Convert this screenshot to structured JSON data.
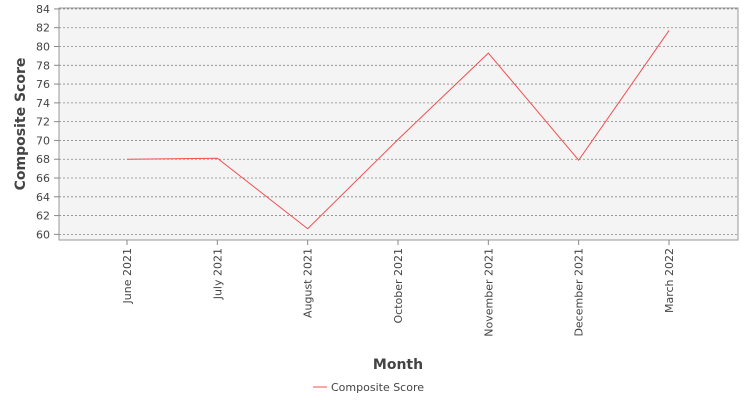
{
  "chart_data": {
    "type": "line",
    "x_label": "Month",
    "y_label": "Composite Score",
    "categories": [
      "June 2021",
      "July 2021",
      "August 2021",
      "October 2021",
      "November 2021",
      "December 2021",
      "March 2022"
    ],
    "series": [
      {
        "name": "Composite Score",
        "color": "#f05050",
        "values": [
          68.0,
          68.1,
          60.6,
          70.1,
          79.3,
          67.9,
          81.7
        ]
      }
    ],
    "ylim": [
      59.4,
      84.1
    ],
    "yticks": [
      60,
      62,
      64,
      66,
      68,
      70,
      72,
      74,
      76,
      78,
      80,
      82,
      84
    ],
    "grid": true
  }
}
